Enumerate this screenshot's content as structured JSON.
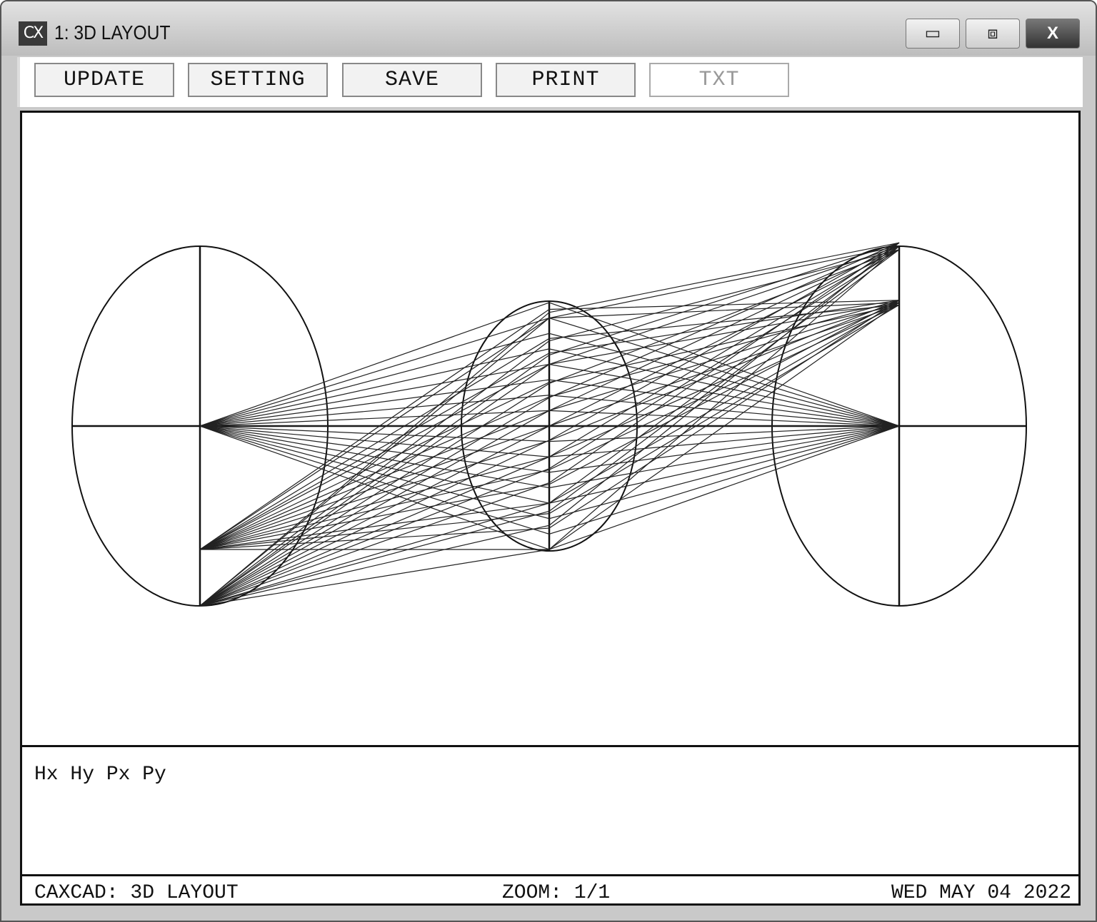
{
  "window": {
    "app_icon": "CX",
    "title": "1: 3D LAYOUT",
    "controls": {
      "minimize": "▭",
      "maximize": "⧈",
      "close": "X"
    }
  },
  "toolbar": {
    "buttons": [
      {
        "label": "UPDATE",
        "enabled": true
      },
      {
        "label": "SETTING",
        "enabled": true
      },
      {
        "label": "SAVE",
        "enabled": true
      },
      {
        "label": "PRINT",
        "enabled": true
      },
      {
        "label": "TXT",
        "enabled": false
      }
    ]
  },
  "info": {
    "text": "Hx Hy Px Py"
  },
  "status": {
    "left": "CAXCAD: 3D LAYOUT",
    "zoom": "ZOOM: 1/1",
    "date": "WED MAY 04 2022"
  }
}
